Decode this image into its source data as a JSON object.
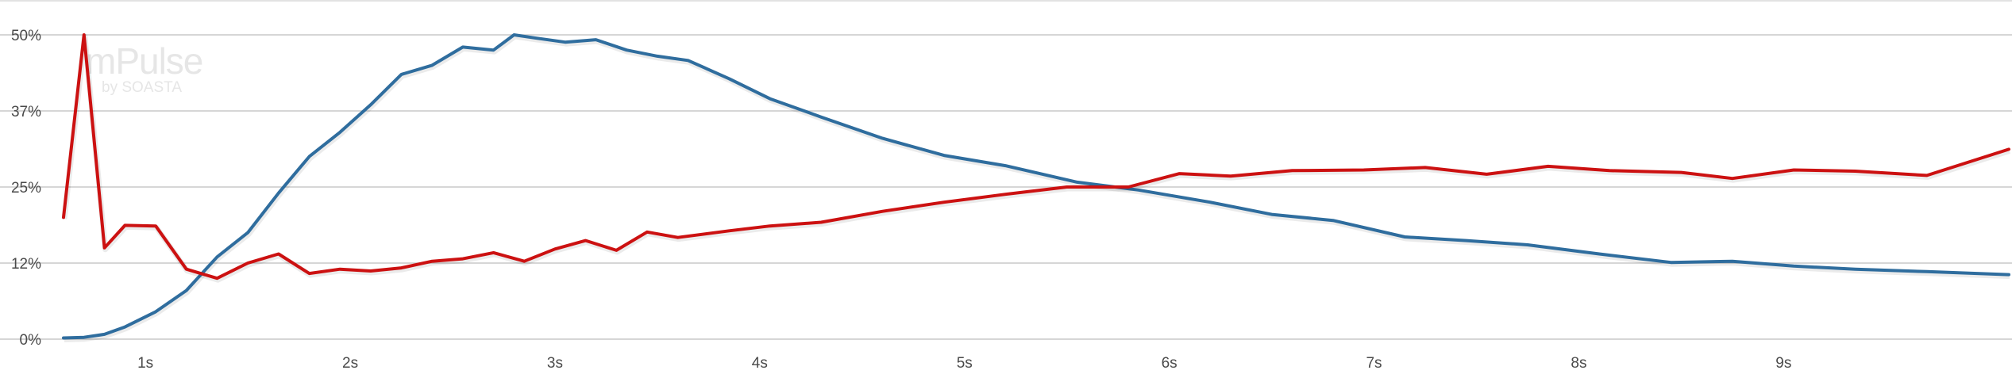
{
  "watermark": {
    "brand": "mPulse",
    "tagline": "by SOASTA"
  },
  "chart_data": {
    "type": "line",
    "title": "",
    "xlabel": "",
    "ylabel": "",
    "xlim": [
      0.6,
      10.1
    ],
    "ylim": [
      0,
      50
    ],
    "grid": true,
    "y_ticks": [
      {
        "value": 0,
        "label": "0%"
      },
      {
        "value": 12.5,
        "label": "12%"
      },
      {
        "value": 25,
        "label": "25%"
      },
      {
        "value": 37.5,
        "label": "37%"
      },
      {
        "value": 50,
        "label": "50%"
      }
    ],
    "x_ticks": [
      {
        "value": 1,
        "label": "1s"
      },
      {
        "value": 2,
        "label": "2s"
      },
      {
        "value": 3,
        "label": "3s"
      },
      {
        "value": 4,
        "label": "4s"
      },
      {
        "value": 5,
        "label": "5s"
      },
      {
        "value": 6,
        "label": "6s"
      },
      {
        "value": 7,
        "label": "7s"
      },
      {
        "value": 8,
        "label": "8s"
      },
      {
        "value": 9,
        "label": "9s"
      }
    ],
    "series": [
      {
        "color": "#2f6d9e",
        "points": [
          [
            0.6,
            0.2
          ],
          [
            0.7,
            0.3
          ],
          [
            0.8,
            0.8
          ],
          [
            0.9,
            2.0
          ],
          [
            1.05,
            4.5
          ],
          [
            1.2,
            8.0
          ],
          [
            1.35,
            13.5
          ],
          [
            1.5,
            17.5
          ],
          [
            1.65,
            24.0
          ],
          [
            1.8,
            30.0
          ],
          [
            1.95,
            34.0
          ],
          [
            2.1,
            38.5
          ],
          [
            2.25,
            43.5
          ],
          [
            2.4,
            45.0
          ],
          [
            2.55,
            48.0
          ],
          [
            2.7,
            47.5
          ],
          [
            2.8,
            50.0
          ],
          [
            2.9,
            49.5
          ],
          [
            3.05,
            48.8
          ],
          [
            3.2,
            49.2
          ],
          [
            3.35,
            47.5
          ],
          [
            3.5,
            46.5
          ],
          [
            3.65,
            45.8
          ],
          [
            3.85,
            42.8
          ],
          [
            4.05,
            39.5
          ],
          [
            4.3,
            36.5
          ],
          [
            4.6,
            33.0
          ],
          [
            4.9,
            30.2
          ],
          [
            5.2,
            28.5
          ],
          [
            5.55,
            25.8
          ],
          [
            5.85,
            24.5
          ],
          [
            6.2,
            22.5
          ],
          [
            6.5,
            20.5
          ],
          [
            6.8,
            19.5
          ],
          [
            7.15,
            16.8
          ],
          [
            7.45,
            16.2
          ],
          [
            7.75,
            15.5
          ],
          [
            8.1,
            14.0
          ],
          [
            8.45,
            12.6
          ],
          [
            8.75,
            12.8
          ],
          [
            9.05,
            12.0
          ],
          [
            9.35,
            11.5
          ],
          [
            9.7,
            11.1
          ],
          [
            10.1,
            10.6
          ]
        ]
      },
      {
        "color": "#cc1111",
        "points": [
          [
            0.6,
            20.0
          ],
          [
            0.7,
            50.0
          ],
          [
            0.8,
            15.0
          ],
          [
            0.9,
            18.7
          ],
          [
            1.05,
            18.6
          ],
          [
            1.2,
            11.5
          ],
          [
            1.35,
            10.0
          ],
          [
            1.5,
            12.5
          ],
          [
            1.65,
            14.0
          ],
          [
            1.8,
            10.8
          ],
          [
            1.95,
            11.5
          ],
          [
            2.1,
            11.2
          ],
          [
            2.25,
            11.7
          ],
          [
            2.4,
            12.8
          ],
          [
            2.55,
            13.2
          ],
          [
            2.7,
            14.2
          ],
          [
            2.85,
            12.8
          ],
          [
            3.0,
            14.8
          ],
          [
            3.15,
            16.2
          ],
          [
            3.3,
            14.6
          ],
          [
            3.45,
            17.6
          ],
          [
            3.6,
            16.7
          ],
          [
            3.85,
            17.8
          ],
          [
            4.05,
            18.6
          ],
          [
            4.3,
            19.2
          ],
          [
            4.6,
            21.0
          ],
          [
            4.9,
            22.5
          ],
          [
            5.2,
            23.8
          ],
          [
            5.5,
            25.0
          ],
          [
            5.8,
            25.0
          ],
          [
            6.05,
            27.2
          ],
          [
            6.3,
            26.8
          ],
          [
            6.6,
            27.7
          ],
          [
            6.95,
            27.8
          ],
          [
            7.25,
            28.2
          ],
          [
            7.55,
            27.1
          ],
          [
            7.85,
            28.4
          ],
          [
            8.15,
            27.7
          ],
          [
            8.5,
            27.4
          ],
          [
            8.75,
            26.4
          ],
          [
            9.05,
            27.8
          ],
          [
            9.35,
            27.6
          ],
          [
            9.7,
            26.9
          ],
          [
            10.1,
            31.2
          ]
        ]
      }
    ]
  }
}
